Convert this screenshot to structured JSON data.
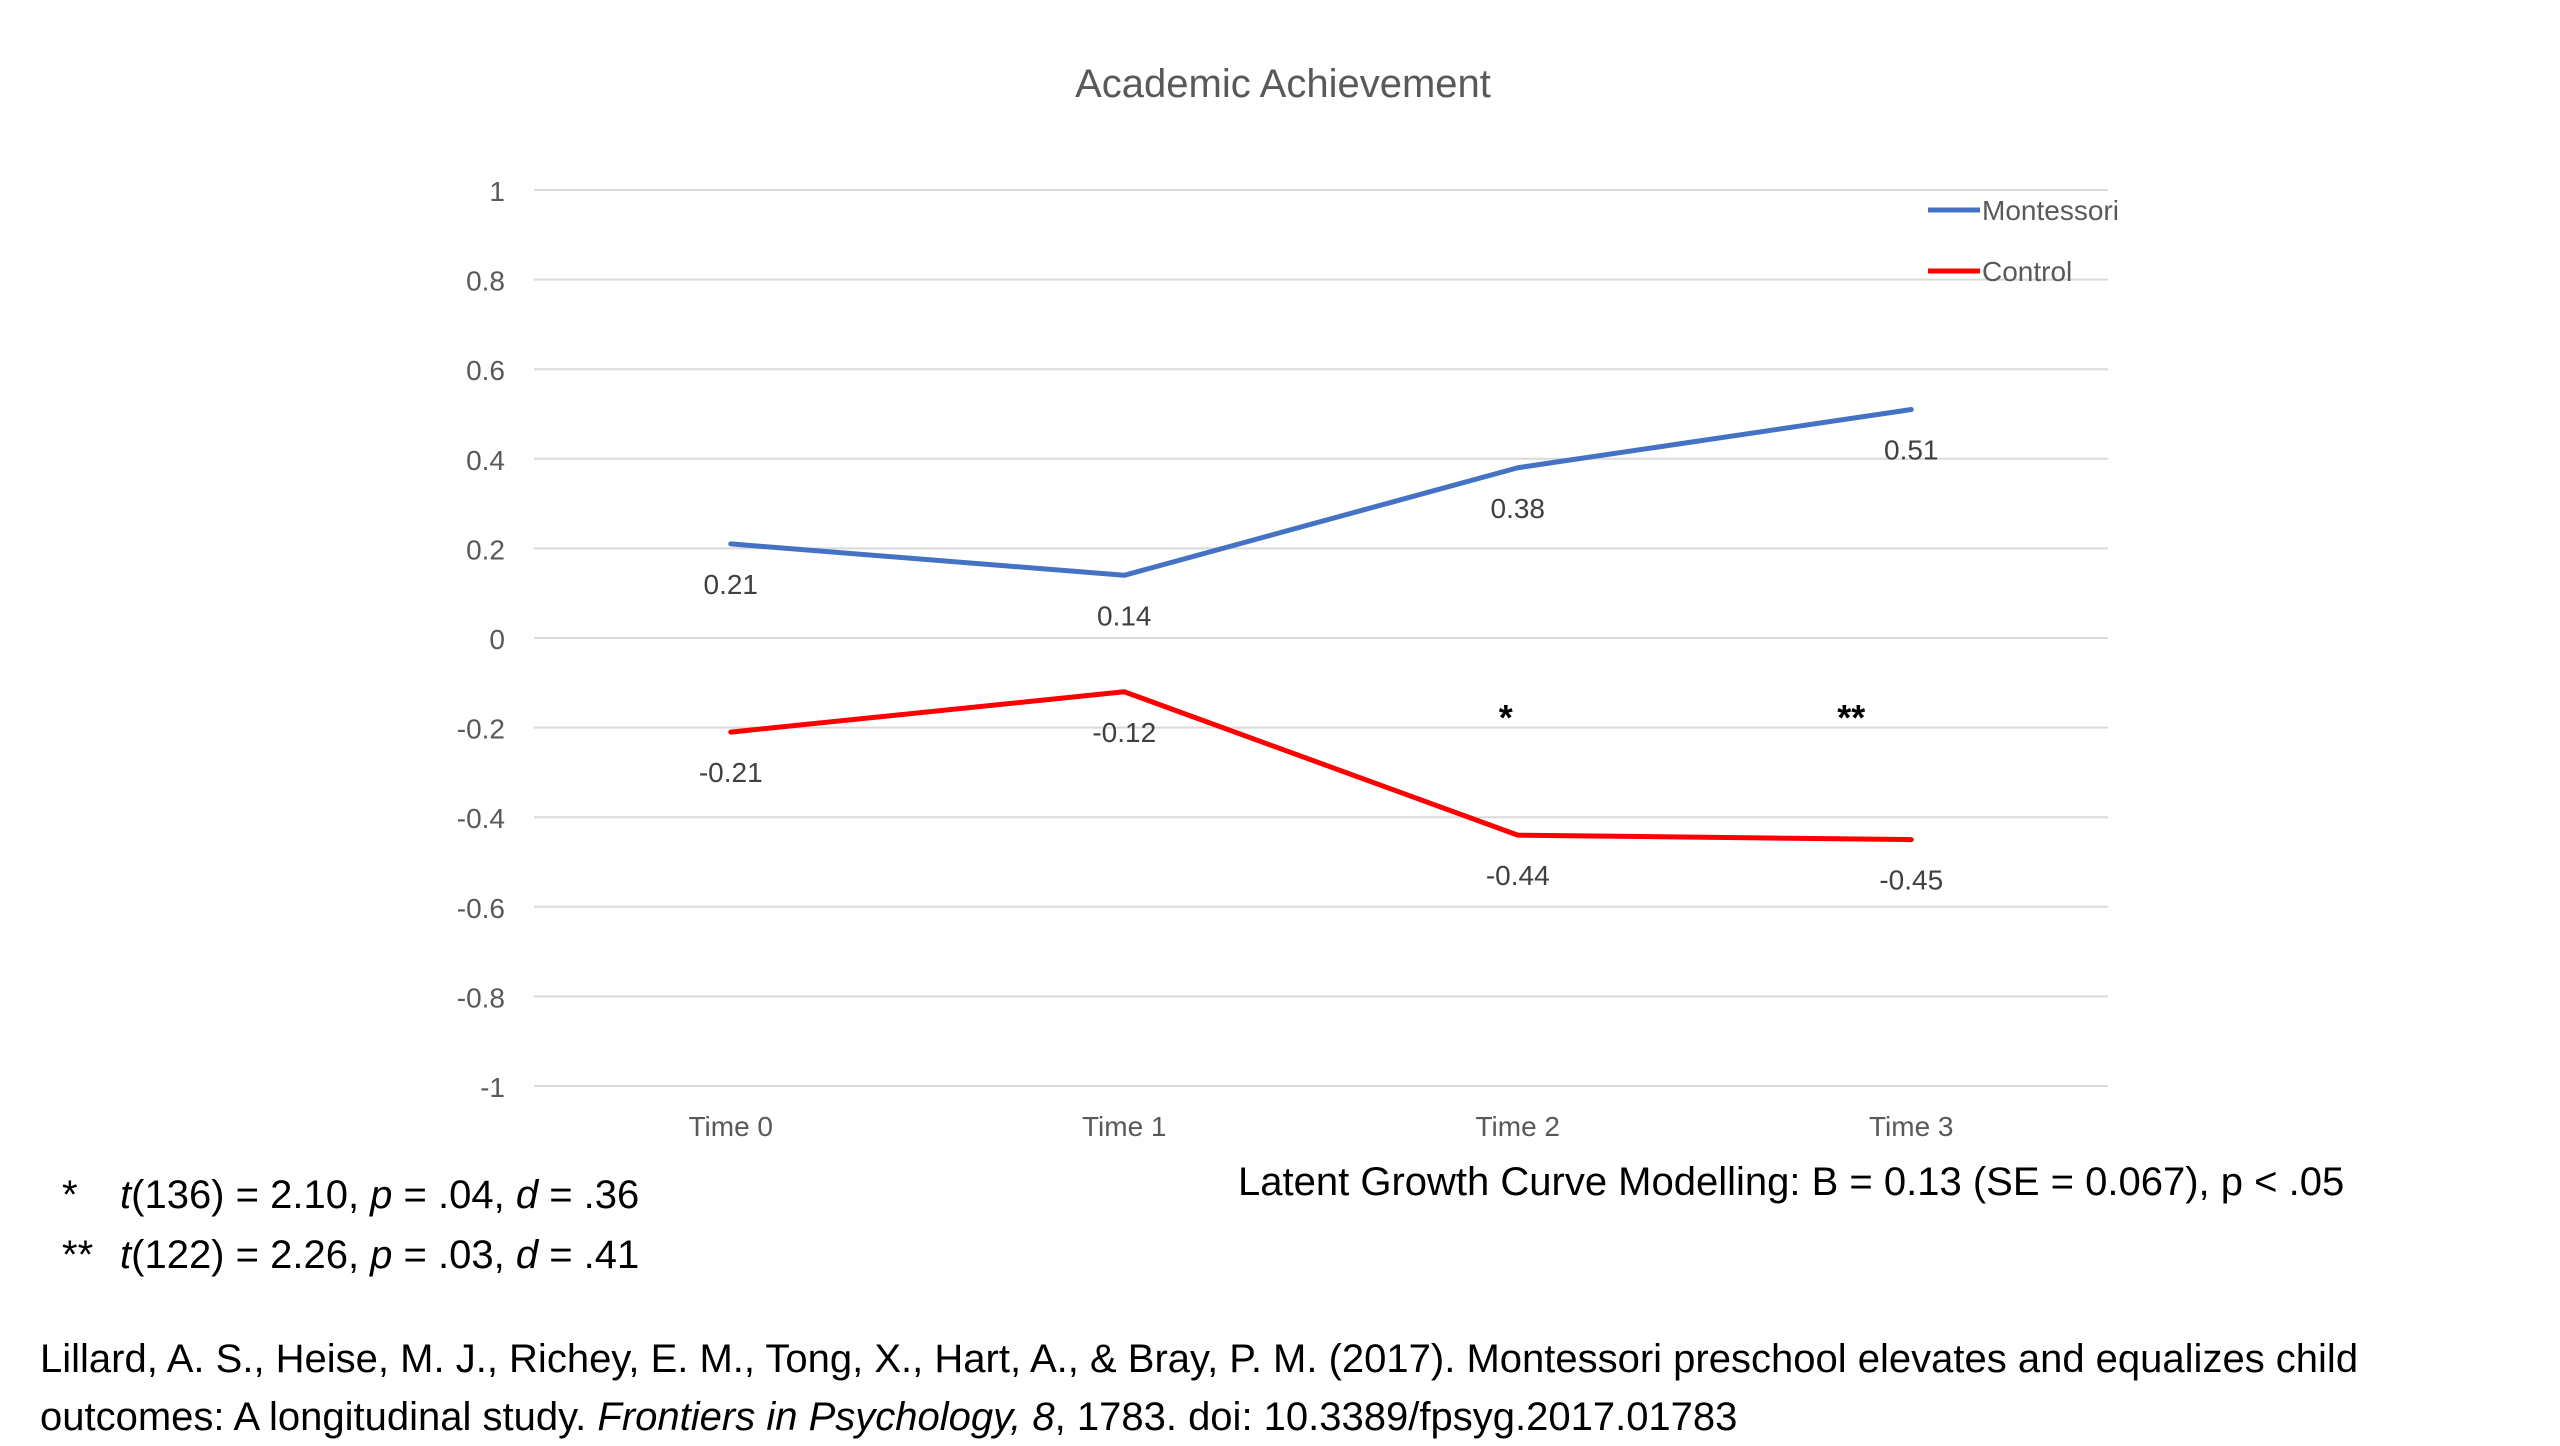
{
  "chart_data": {
    "type": "line",
    "title": "Academic Achievement",
    "xlabel": "",
    "ylabel": "",
    "categories": [
      "Time 0",
      "Time 1",
      "Time 2",
      "Time 3"
    ],
    "ylim": [
      -1,
      1
    ],
    "yticks": [
      1,
      0.8,
      0.6,
      0.4,
      0.2,
      0,
      -0.2,
      -0.4,
      -0.6,
      -0.8,
      -1
    ],
    "ytick_labels": [
      "1",
      "0.8",
      "0.6",
      "0.4",
      "0.2",
      "0",
      "-0.2",
      "-0.4",
      "-0.6",
      "-0.8",
      "-1"
    ],
    "grid": true,
    "legend": "top-right",
    "series": [
      {
        "name": "Montessori",
        "color": "#4472C4",
        "values": [
          0.21,
          0.14,
          0.38,
          0.51
        ],
        "labels": [
          "0.21",
          "0.14",
          "0.38",
          "0.51"
        ]
      },
      {
        "name": "Control",
        "color": "#FF0000",
        "values": [
          -0.21,
          -0.12,
          -0.44,
          -0.45
        ],
        "labels": [
          "-0.21",
          "-0.12",
          "-0.44",
          "-0.45"
        ]
      }
    ],
    "annotations": [
      {
        "text": "*",
        "category": "Time 2"
      },
      {
        "text": "**",
        "category": "Time 3"
      }
    ]
  },
  "notes": [
    {
      "marker": "*",
      "stat": "t",
      "df": "(136) = 2.10, ",
      "p": "p",
      "pval": " = .04, ",
      "d": "d",
      "dval": " = .36"
    },
    {
      "marker": "**",
      "stat": "t",
      "df": "(122) = 2.26, ",
      "p": "p",
      "pval": " = .03, ",
      "d": "d",
      "dval": " = .41"
    }
  ],
  "model_text": "Latent Growth Curve Modelling: B = 0.13 (SE = 0.067), p < .05",
  "citation": {
    "line1": "Lillard, A. S., Heise, M. J., Richey, E. M., Tong, X., Hart, A., & Bray, P. M. (2017). Montessori preschool elevates and equalizes child",
    "line2_pre": "outcomes: A longitudinal study. ",
    "journal": "Frontiers in Psychology, 8",
    "line2_post": ", 1783. doi: 10.3389/fpsyg.2017.01783"
  }
}
